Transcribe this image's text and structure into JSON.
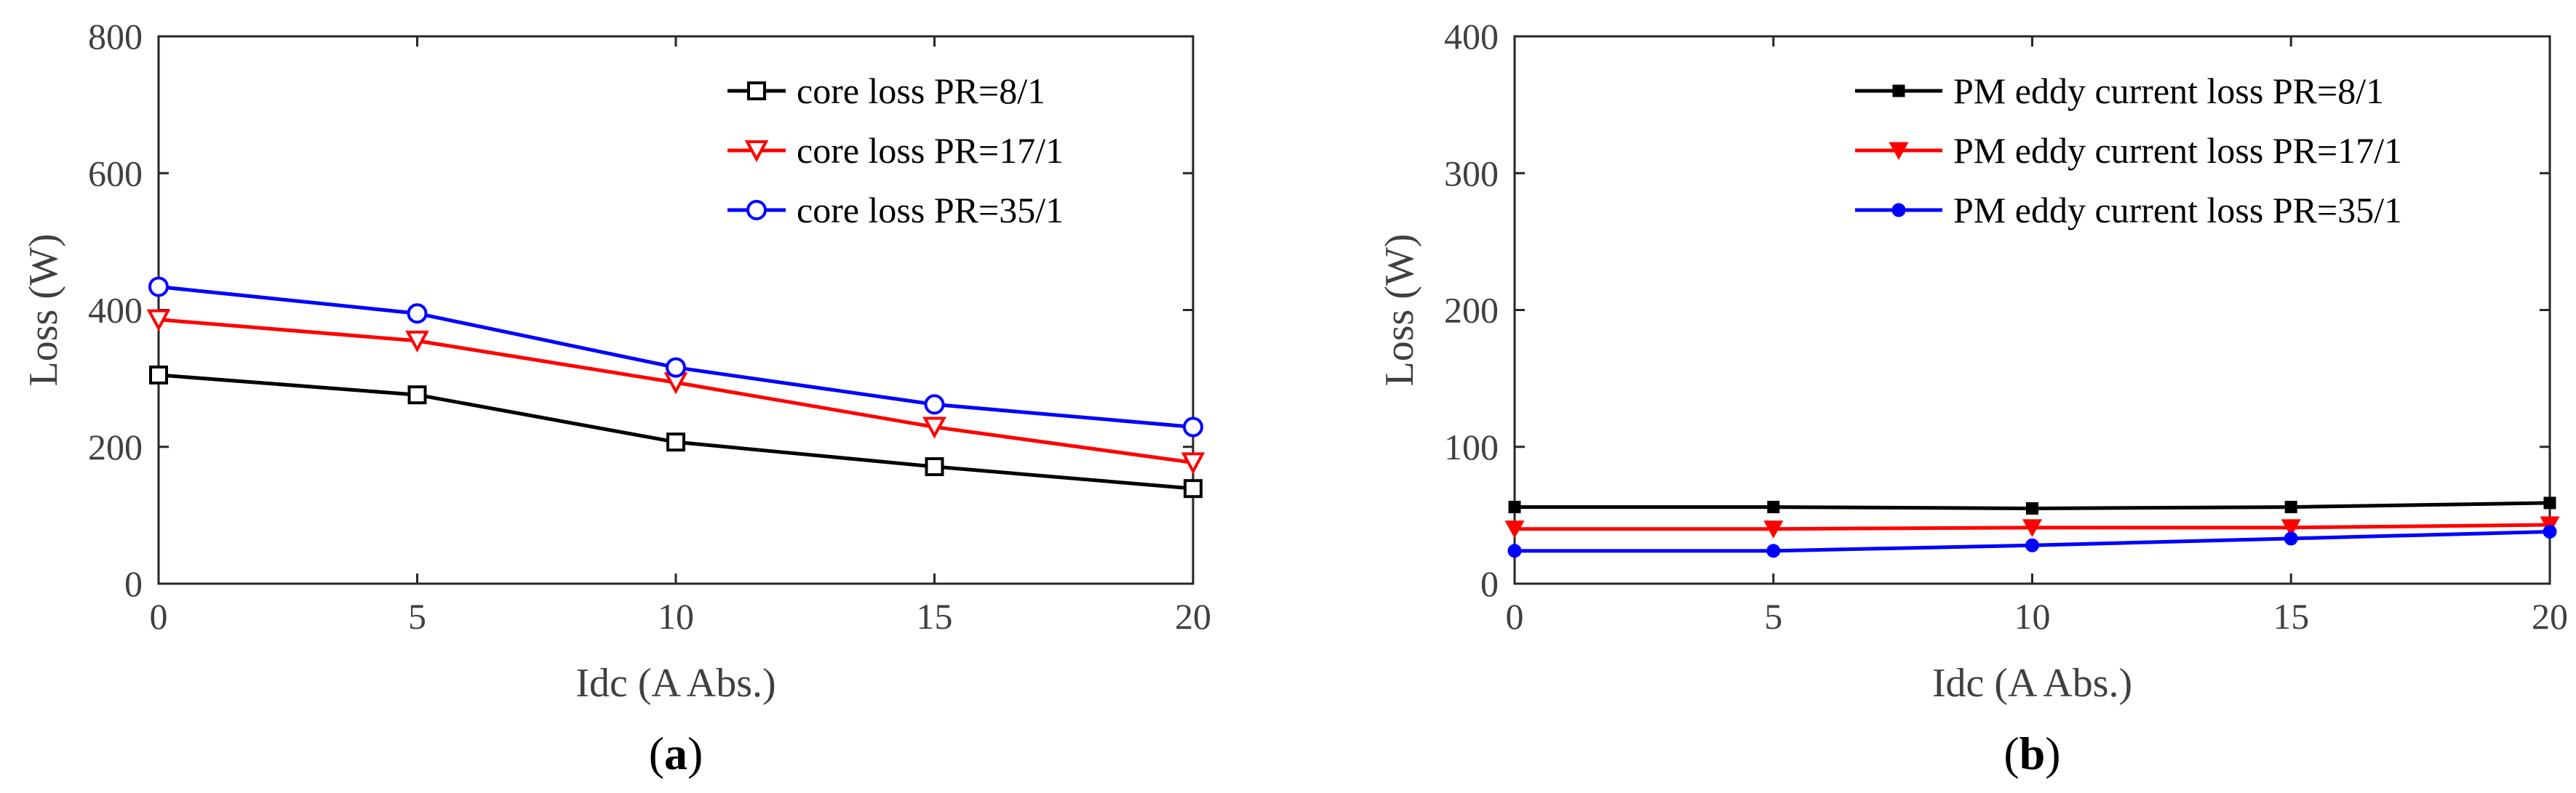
{
  "chart_data": [
    {
      "type": "line",
      "panel_label": "a",
      "xlabel": "Idc (A Abs.)",
      "ylabel": "Loss (W)",
      "xlim": [
        0,
        20
      ],
      "ylim": [
        0,
        800
      ],
      "xticks": [
        0,
        5,
        10,
        15,
        20
      ],
      "yticks": [
        0,
        200,
        400,
        600,
        800
      ],
      "x": [
        0,
        5,
        10,
        15,
        20
      ],
      "legend_position": "top-right",
      "series": [
        {
          "name": "core loss PR=8/1",
          "color": "#000000",
          "marker": "square-open",
          "values": [
            305,
            276,
            207,
            171,
            139
          ]
        },
        {
          "name": "core loss PR=17/1",
          "color": "#ff0000",
          "marker": "triangle-down-open",
          "values": [
            386,
            355,
            294,
            229,
            177
          ]
        },
        {
          "name": "core loss PR=35/1",
          "color": "#0000ff",
          "marker": "circle-open",
          "values": [
            434,
            395,
            316,
            262,
            229
          ]
        }
      ]
    },
    {
      "type": "line",
      "panel_label": "b",
      "xlabel": "Idc (A Abs.)",
      "ylabel": "Loss (W)",
      "xlim": [
        0,
        20
      ],
      "ylim": [
        0,
        400
      ],
      "xticks": [
        0,
        5,
        10,
        15,
        20
      ],
      "yticks": [
        0,
        100,
        200,
        300,
        400
      ],
      "x": [
        0,
        5,
        10,
        15,
        20
      ],
      "legend_position": "top-right",
      "series": [
        {
          "name": "PM eddy current loss PR=8/1",
          "color": "#000000",
          "marker": "square-filled",
          "values": [
            56,
            56,
            55,
            56,
            59
          ]
        },
        {
          "name": "PM eddy current loss PR=17/1",
          "color": "#ff0000",
          "marker": "triangle-down-filled",
          "values": [
            40,
            40,
            41,
            41,
            43
          ]
        },
        {
          "name": "PM eddy current loss PR=35/1",
          "color": "#0000ff",
          "marker": "circle-filled",
          "values": [
            24,
            24,
            28,
            33,
            38
          ]
        }
      ]
    }
  ]
}
